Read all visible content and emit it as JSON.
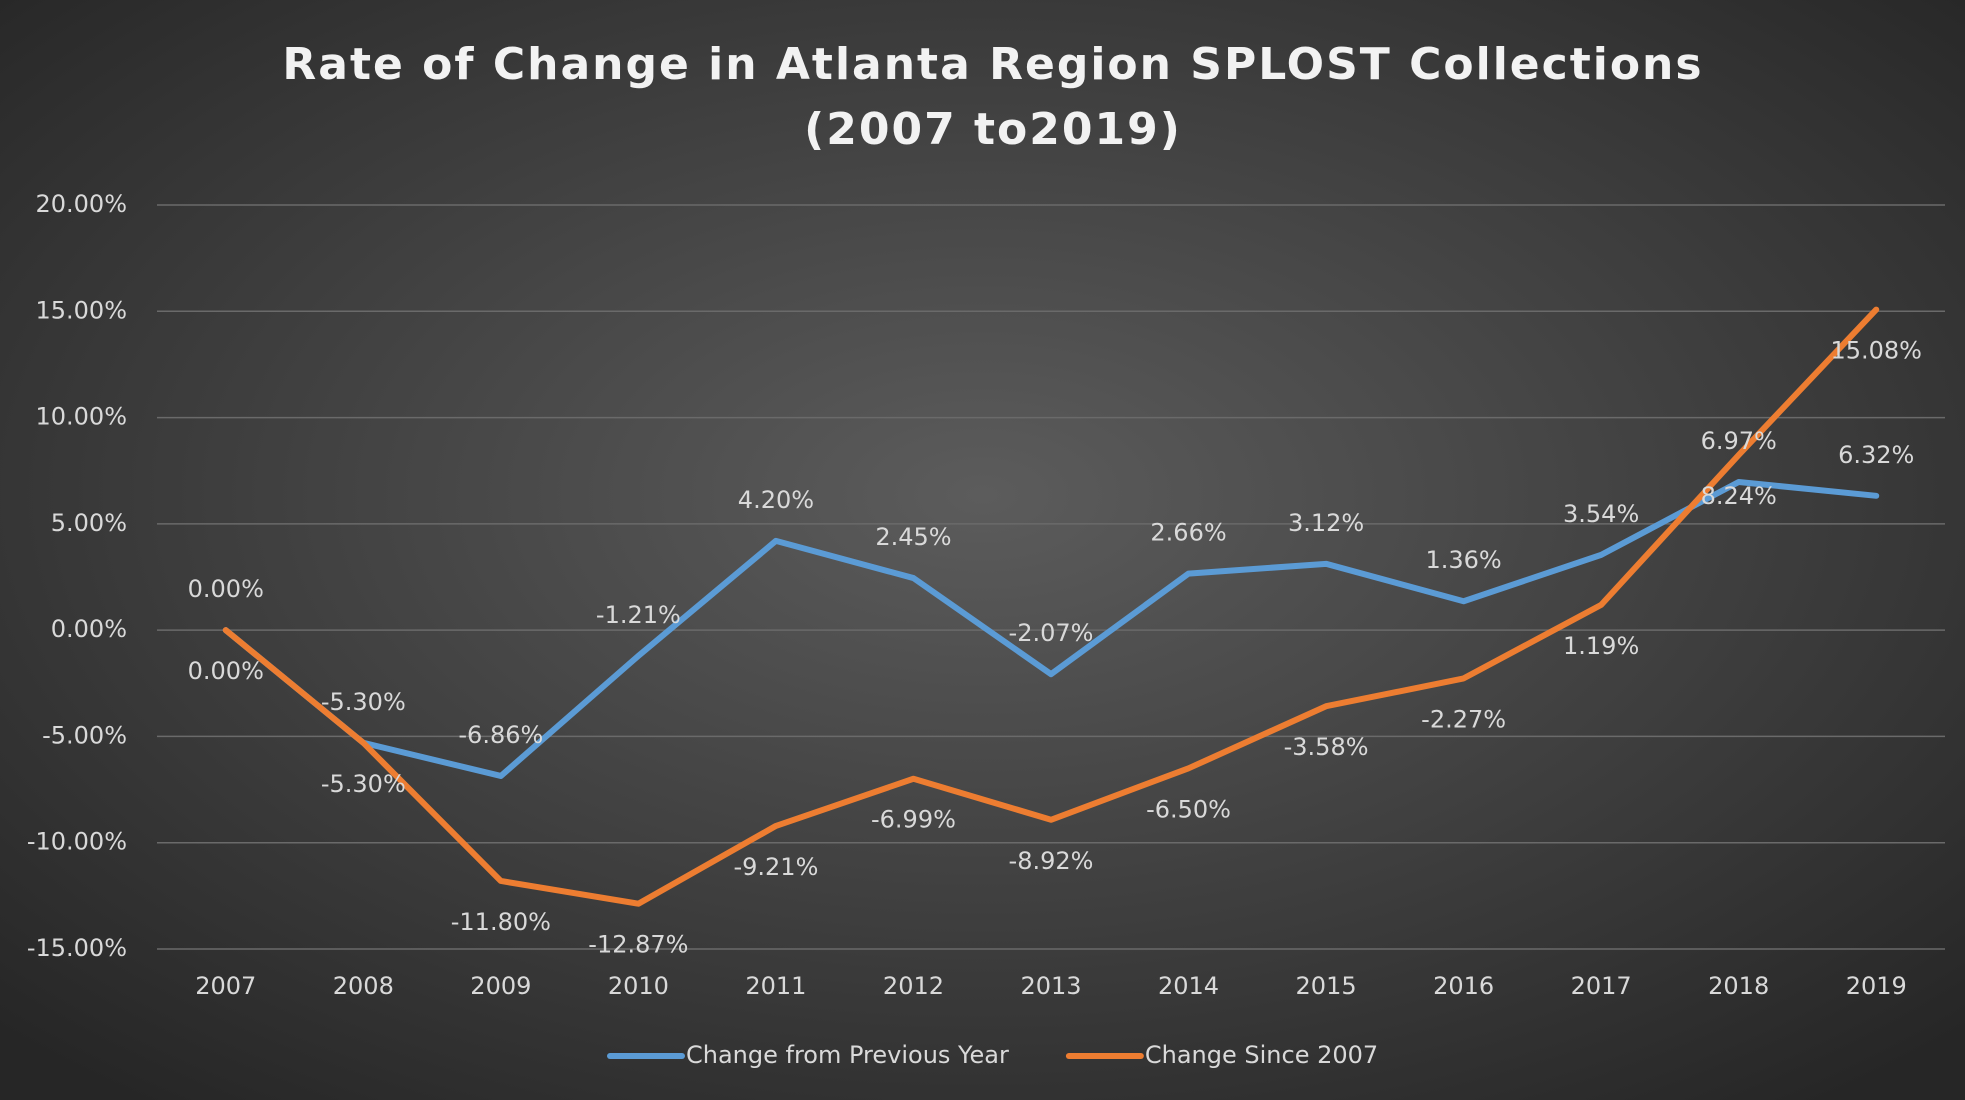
{
  "chart_data": {
    "type": "line",
    "title": [
      "Rate of Change in Atlanta Region SPLOST Collections",
      "(2007 to2019)"
    ],
    "categories": [
      "2007",
      "2008",
      "2009",
      "2010",
      "2011",
      "2012",
      "2013",
      "2014",
      "2015",
      "2016",
      "2017",
      "2018",
      "2019"
    ],
    "series": [
      {
        "name": "Change from Previous Year",
        "color": "#5b9bd5",
        "values": [
          0,
          -5.3,
          -6.86,
          -1.21,
          4.2,
          2.45,
          -2.07,
          2.66,
          3.12,
          1.36,
          3.54,
          6.97,
          6.32
        ],
        "value_labels": [
          "0.00%",
          "-5.30%",
          "-6.86%",
          "-1.21%",
          "4.20%",
          "2.45%",
          "-2.07%",
          "2.66%",
          "3.12%",
          "1.36%",
          "3.54%",
          "6.97%",
          "6.32%"
        ]
      },
      {
        "name": "Change Since 2007",
        "color": "#ed7d31",
        "values": [
          0,
          -5.3,
          -11.8,
          -12.87,
          -9.21,
          -6.99,
          -8.92,
          -6.5,
          -3.58,
          -2.27,
          1.19,
          8.24,
          15.08
        ],
        "value_labels": [
          "0.00%",
          "-5.30%",
          "-11.80%",
          "-12.87%",
          "-9.21%",
          "-6.99%",
          "-8.92%",
          "-6.50%",
          "-3.58%",
          "-2.27%",
          "1.19%",
          "8.24%",
          "15.08%"
        ]
      }
    ],
    "ylim": [
      -15,
      20
    ],
    "yticks": [
      {
        "value": -15,
        "label": "-15.00%"
      },
      {
        "value": -10,
        "label": "-10.00%"
      },
      {
        "value": -5,
        "label": "-5.00%"
      },
      {
        "value": 0,
        "label": "0.00%"
      },
      {
        "value": 5,
        "label": "5.00%"
      },
      {
        "value": 10,
        "label": "10.00%"
      },
      {
        "value": 15,
        "label": "15.00%"
      },
      {
        "value": 20,
        "label": "20.00%"
      }
    ],
    "grid": true,
    "legend": "bottom"
  }
}
